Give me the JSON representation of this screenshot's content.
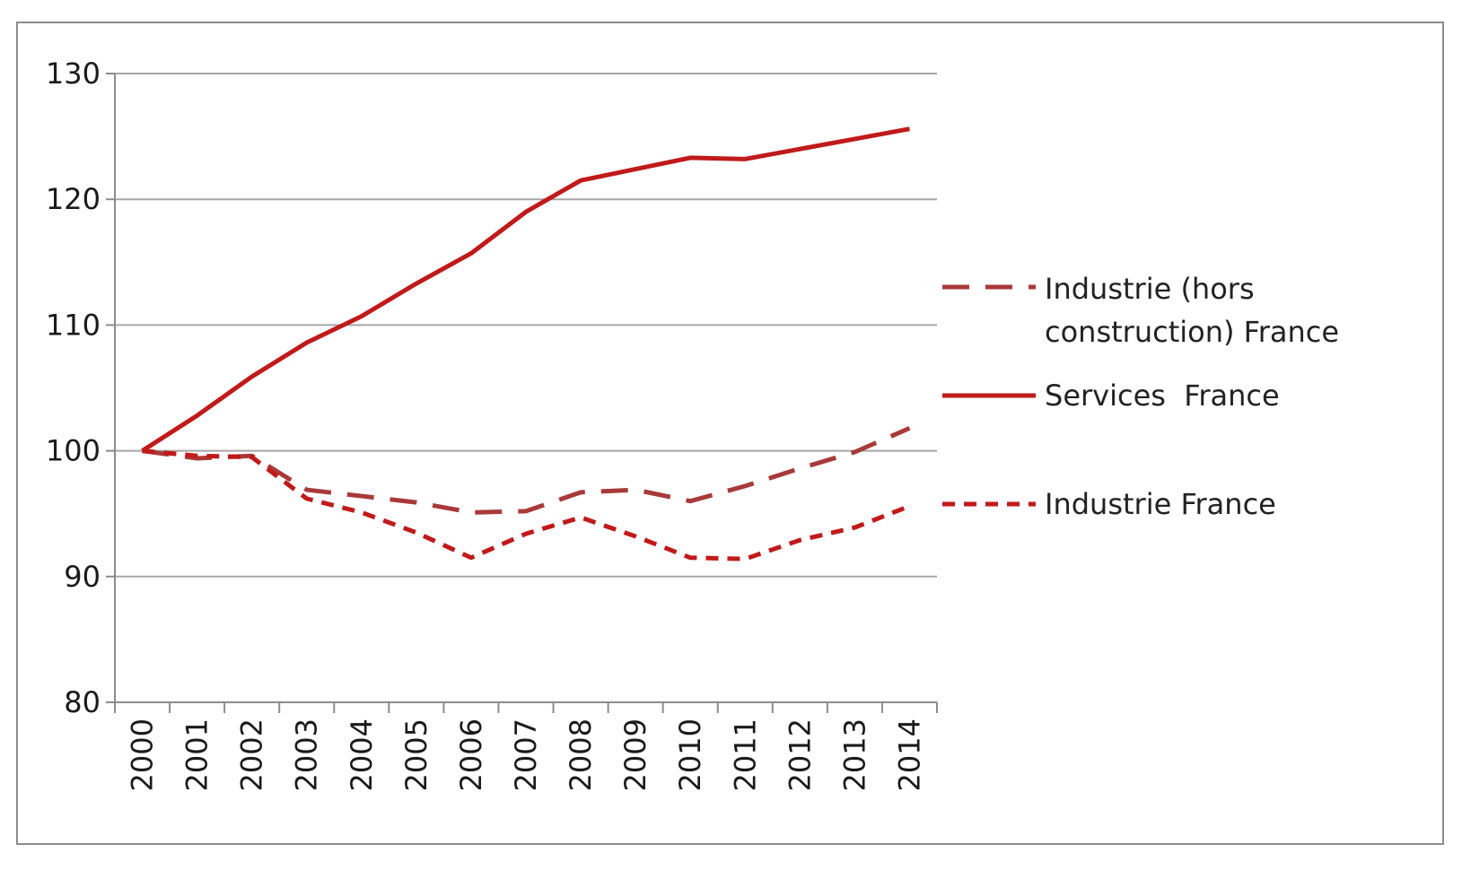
{
  "chart_data": {
    "type": "line",
    "title": "",
    "xlabel": "",
    "ylabel": "",
    "categories": [
      "2000",
      "2001",
      "2002",
      "2003",
      "2004",
      "2005",
      "2006",
      "2007",
      "2008",
      "2009",
      "2010",
      "2011",
      "2012",
      "2013",
      "2014"
    ],
    "ylim": [
      80,
      130
    ],
    "yticks": [
      80,
      90,
      100,
      110,
      120,
      130
    ],
    "grid": true,
    "legend_position": "right",
    "series": [
      {
        "name": "Industrie (hors construction) France",
        "style": "long-dash",
        "color": "#a83a3a",
        "values": [
          100,
          99.4,
          99.6,
          96.9,
          96.4,
          95.9,
          95.1,
          95.2,
          96.7,
          96.9,
          96.0,
          97.2,
          98.6,
          99.9,
          101.8
        ]
      },
      {
        "name": "Services  France",
        "style": "solid",
        "color": "#c01a1a",
        "values": [
          100,
          102.8,
          105.9,
          108.6,
          110.7,
          113.3,
          115.7,
          119.0,
          121.5,
          122.4,
          123.3,
          123.2,
          124.0,
          124.8,
          125.6
        ]
      },
      {
        "name": "Industrie France",
        "style": "short-dash",
        "color": "#c01a1a",
        "values": [
          100,
          99.6,
          99.5,
          96.2,
          95.1,
          93.5,
          91.5,
          93.4,
          94.7,
          93.2,
          91.5,
          91.4,
          92.9,
          93.9,
          95.6
        ]
      }
    ]
  }
}
